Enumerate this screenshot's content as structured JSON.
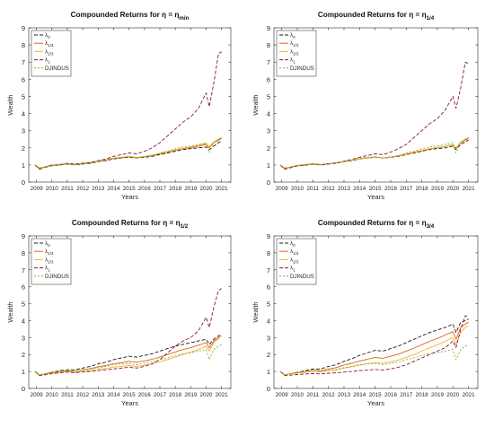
{
  "figure": {
    "legend_labels": [
      "λ0",
      "λ1/3",
      "λ2/3",
      "λ1",
      "DJINDUS"
    ],
    "legend_display": [
      {
        "main": "λ",
        "sub": "0"
      },
      {
        "main": "λ",
        "sub": "1/3"
      },
      {
        "main": "λ",
        "sub": "2/3"
      },
      {
        "main": "λ",
        "sub": "1"
      },
      {
        "main": "DJINDUS",
        "sub": ""
      }
    ],
    "series_colors": [
      "#1a1a1a",
      "#e0621d",
      "#f2b233",
      "#8b1a3e",
      "#7ab532"
    ]
  },
  "chart_data": [
    {
      "type": "line",
      "title": "Compounded Returns for η = η",
      "title_sub": "min",
      "xlabel": "Years",
      "ylabel": "Wealth",
      "xticks": [
        "2009",
        "2010",
        "2011",
        "2012",
        "2013",
        "2014",
        "2015",
        "2016",
        "2017",
        "2018",
        "2019",
        "2020",
        "2021"
      ],
      "xlim": [
        2008.5,
        2021.6
      ],
      "ylim": [
        0,
        9
      ],
      "yticks": [
        0,
        1,
        2,
        3,
        4,
        5,
        6,
        7,
        8,
        9
      ],
      "legend_position": "top-left",
      "x": [
        2008.9,
        2009.2,
        2009.5,
        2010,
        2010.5,
        2011,
        2011.5,
        2012,
        2012.5,
        2013,
        2013.5,
        2014,
        2014.5,
        2015,
        2015.5,
        2016,
        2016.5,
        2017,
        2017.5,
        2018,
        2018.5,
        2019,
        2019.5,
        2020,
        2020.2,
        2020.5,
        2020.8,
        2021
      ],
      "series": [
        {
          "name": "λ0",
          "values": [
            1.0,
            0.8,
            0.85,
            0.95,
            1.0,
            1.05,
            1.0,
            1.05,
            1.1,
            1.2,
            1.25,
            1.35,
            1.4,
            1.45,
            1.4,
            1.45,
            1.5,
            1.6,
            1.7,
            1.8,
            1.9,
            1.95,
            2.0,
            2.05,
            1.9,
            2.1,
            2.3,
            2.4
          ]
        },
        {
          "name": "λ1/3",
          "values": [
            1.0,
            0.82,
            0.87,
            0.97,
            1.02,
            1.07,
            1.02,
            1.08,
            1.13,
            1.22,
            1.28,
            1.38,
            1.42,
            1.48,
            1.43,
            1.48,
            1.55,
            1.65,
            1.75,
            1.85,
            1.95,
            2.0,
            2.1,
            2.2,
            2.0,
            2.3,
            2.45,
            2.55
          ]
        },
        {
          "name": "λ2/3",
          "values": [
            1.0,
            0.84,
            0.89,
            0.99,
            1.04,
            1.09,
            1.04,
            1.1,
            1.15,
            1.24,
            1.3,
            1.4,
            1.45,
            1.5,
            1.45,
            1.5,
            1.58,
            1.68,
            1.78,
            1.88,
            1.98,
            2.05,
            2.15,
            2.25,
            2.05,
            2.35,
            2.5,
            2.6
          ]
        },
        {
          "name": "λ1",
          "values": [
            1.0,
            0.75,
            0.85,
            1.0,
            1.0,
            1.1,
            1.05,
            1.1,
            1.15,
            1.25,
            1.35,
            1.5,
            1.6,
            1.7,
            1.65,
            1.8,
            2.0,
            2.3,
            2.7,
            3.1,
            3.5,
            3.8,
            4.3,
            5.2,
            4.4,
            5.8,
            7.5,
            7.6
          ]
        },
        {
          "name": "DJINDUS",
          "values": [
            1.0,
            0.78,
            0.86,
            0.98,
            1.0,
            1.08,
            1.0,
            1.08,
            1.12,
            1.22,
            1.3,
            1.4,
            1.45,
            1.48,
            1.4,
            1.48,
            1.55,
            1.7,
            1.8,
            1.95,
            2.05,
            2.1,
            2.2,
            2.3,
            1.7,
            2.3,
            2.5,
            2.6
          ]
        }
      ]
    },
    {
      "type": "line",
      "title": "Compounded Returns for η = η",
      "title_sub": "1/4",
      "xlabel": "Years",
      "ylabel": "Wealth",
      "xticks": [
        "2009",
        "2010",
        "2011",
        "2012",
        "2013",
        "2014",
        "2015",
        "2016",
        "2017",
        "2018",
        "2019",
        "2020",
        "2021"
      ],
      "xlim": [
        2008.5,
        2021.6
      ],
      "ylim": [
        0,
        9
      ],
      "yticks": [
        0,
        1,
        2,
        3,
        4,
        5,
        6,
        7,
        8,
        9
      ],
      "legend_position": "top-left",
      "x": [
        2008.9,
        2009.2,
        2009.5,
        2010,
        2010.5,
        2011,
        2011.5,
        2012,
        2012.5,
        2013,
        2013.5,
        2014,
        2014.5,
        2015,
        2015.5,
        2016,
        2016.5,
        2017,
        2017.5,
        2018,
        2018.5,
        2019,
        2019.5,
        2020,
        2020.2,
        2020.5,
        2020.8,
        2021
      ],
      "series": [
        {
          "name": "λ0",
          "values": [
            1.0,
            0.8,
            0.85,
            0.95,
            1.0,
            1.05,
            1.0,
            1.05,
            1.1,
            1.2,
            1.25,
            1.35,
            1.4,
            1.45,
            1.4,
            1.45,
            1.5,
            1.6,
            1.7,
            1.8,
            1.9,
            1.95,
            2.0,
            2.1,
            1.9,
            2.2,
            2.35,
            2.45
          ]
        },
        {
          "name": "λ1/3",
          "values": [
            1.0,
            0.82,
            0.87,
            0.97,
            1.02,
            1.07,
            1.02,
            1.07,
            1.12,
            1.2,
            1.27,
            1.36,
            1.41,
            1.46,
            1.41,
            1.46,
            1.53,
            1.63,
            1.73,
            1.83,
            1.93,
            2.0,
            2.08,
            2.18,
            1.95,
            2.3,
            2.45,
            2.55
          ]
        },
        {
          "name": "λ2/3",
          "values": [
            1.0,
            0.83,
            0.88,
            0.98,
            1.03,
            1.08,
            1.03,
            1.08,
            1.13,
            1.22,
            1.28,
            1.37,
            1.42,
            1.47,
            1.42,
            1.47,
            1.55,
            1.65,
            1.75,
            1.85,
            1.95,
            2.02,
            2.1,
            2.2,
            2.0,
            2.35,
            2.5,
            2.6
          ]
        },
        {
          "name": "λ1",
          "values": [
            1.0,
            0.75,
            0.82,
            0.95,
            0.98,
            1.05,
            1.0,
            1.07,
            1.12,
            1.22,
            1.32,
            1.45,
            1.55,
            1.65,
            1.6,
            1.75,
            1.95,
            2.2,
            2.6,
            3.0,
            3.4,
            3.7,
            4.2,
            5.0,
            4.3,
            5.5,
            7.0,
            6.9
          ]
        },
        {
          "name": "DJINDUS",
          "values": [
            1.0,
            0.78,
            0.86,
            0.98,
            1.0,
            1.08,
            1.0,
            1.08,
            1.12,
            1.22,
            1.3,
            1.4,
            1.45,
            1.48,
            1.4,
            1.48,
            1.55,
            1.7,
            1.8,
            1.95,
            2.05,
            2.1,
            2.2,
            2.3,
            1.7,
            2.3,
            2.5,
            2.6
          ]
        }
      ]
    },
    {
      "type": "line",
      "title": "Compounded Returns for η = η",
      "title_sub": "1/2",
      "xlabel": "Years",
      "ylabel": "Wealth",
      "xticks": [
        "2009",
        "2010",
        "2011",
        "2012",
        "2013",
        "2014",
        "2015",
        "2016",
        "2017",
        "2018",
        "2019",
        "2020",
        "2021"
      ],
      "xlim": [
        2008.5,
        2021.6
      ],
      "ylim": [
        0,
        9
      ],
      "yticks": [
        0,
        1,
        2,
        3,
        4,
        5,
        6,
        7,
        8,
        9
      ],
      "legend_position": "top-left",
      "x": [
        2008.9,
        2009.2,
        2009.5,
        2010,
        2010.5,
        2011,
        2011.5,
        2012,
        2012.5,
        2013,
        2013.5,
        2014,
        2014.5,
        2015,
        2015.5,
        2016,
        2016.5,
        2017,
        2017.5,
        2018,
        2018.5,
        2019,
        2019.5,
        2020,
        2020.2,
        2020.5,
        2020.8,
        2021
      ],
      "series": [
        {
          "name": "λ0",
          "values": [
            1.0,
            0.8,
            0.85,
            0.95,
            1.05,
            1.1,
            1.1,
            1.2,
            1.3,
            1.45,
            1.55,
            1.7,
            1.8,
            1.9,
            1.85,
            1.95,
            2.05,
            2.2,
            2.35,
            2.5,
            2.6,
            2.7,
            2.8,
            2.9,
            2.6,
            2.9,
            3.1,
            3.2
          ]
        },
        {
          "name": "λ1/3",
          "values": [
            1.0,
            0.8,
            0.85,
            0.93,
            1.0,
            1.05,
            1.02,
            1.1,
            1.17,
            1.28,
            1.35,
            1.46,
            1.52,
            1.6,
            1.55,
            1.62,
            1.72,
            1.85,
            2.0,
            2.15,
            2.3,
            2.4,
            2.55,
            2.7,
            2.4,
            2.8,
            3.0,
            3.1
          ]
        },
        {
          "name": "λ2/3",
          "values": [
            1.0,
            0.8,
            0.84,
            0.9,
            0.95,
            1.0,
            0.95,
            1.0,
            1.05,
            1.12,
            1.18,
            1.26,
            1.3,
            1.35,
            1.3,
            1.37,
            1.45,
            1.58,
            1.7,
            1.85,
            2.0,
            2.15,
            2.3,
            2.5,
            2.2,
            2.7,
            2.95,
            3.1
          ]
        },
        {
          "name": "λ1",
          "values": [
            1.0,
            0.75,
            0.8,
            0.88,
            0.92,
            0.97,
            0.92,
            0.97,
            1.0,
            1.05,
            1.1,
            1.15,
            1.2,
            1.25,
            1.2,
            1.3,
            1.45,
            1.7,
            2.1,
            2.5,
            2.8,
            3.0,
            3.4,
            4.2,
            3.6,
            4.8,
            5.8,
            5.9
          ]
        },
        {
          "name": "DJINDUS",
          "values": [
            1.0,
            0.78,
            0.86,
            0.98,
            1.0,
            1.08,
            1.0,
            1.08,
            1.12,
            1.22,
            1.3,
            1.4,
            1.45,
            1.48,
            1.4,
            1.48,
            1.55,
            1.7,
            1.8,
            1.95,
            2.05,
            2.1,
            2.2,
            2.3,
            1.7,
            2.3,
            2.5,
            2.6
          ]
        }
      ]
    },
    {
      "type": "line",
      "title": "Compounded Returns for η = η",
      "title_sub": "3/4",
      "xlabel": "Years",
      "ylabel": "Wealth",
      "xticks": [
        "2009",
        "2010",
        "2011",
        "2012",
        "2013",
        "2014",
        "2015",
        "2016",
        "2017",
        "2018",
        "2019",
        "2020",
        "2021"
      ],
      "xlim": [
        2008.5,
        2021.6
      ],
      "ylim": [
        0,
        9
      ],
      "yticks": [
        0,
        1,
        2,
        3,
        4,
        5,
        6,
        7,
        8,
        9
      ],
      "legend_position": "top-left",
      "x": [
        2008.9,
        2009.2,
        2009.5,
        2010,
        2010.5,
        2011,
        2011.5,
        2012,
        2012.5,
        2013,
        2013.5,
        2014,
        2014.5,
        2015,
        2015.5,
        2016,
        2016.5,
        2017,
        2017.5,
        2018,
        2018.5,
        2019,
        2019.5,
        2020,
        2020.2,
        2020.5,
        2020.8,
        2021
      ],
      "series": [
        {
          "name": "λ0",
          "values": [
            1.0,
            0.8,
            0.85,
            0.95,
            1.05,
            1.15,
            1.15,
            1.3,
            1.4,
            1.6,
            1.75,
            1.95,
            2.1,
            2.25,
            2.2,
            2.35,
            2.5,
            2.7,
            2.9,
            3.1,
            3.3,
            3.45,
            3.6,
            3.8,
            3.3,
            3.9,
            4.0,
            4.1
          ]
        },
        {
          "name": "λ1/3",
          "values": [
            1.0,
            0.8,
            0.85,
            0.93,
            1.0,
            1.08,
            1.05,
            1.15,
            1.23,
            1.38,
            1.48,
            1.62,
            1.72,
            1.83,
            1.78,
            1.9,
            2.02,
            2.2,
            2.38,
            2.58,
            2.78,
            2.95,
            3.15,
            3.35,
            2.9,
            3.6,
            3.8,
            3.9
          ]
        },
        {
          "name": "λ2/3",
          "values": [
            1.0,
            0.8,
            0.84,
            0.9,
            0.95,
            1.0,
            0.97,
            1.05,
            1.1,
            1.2,
            1.28,
            1.38,
            1.45,
            1.52,
            1.48,
            1.57,
            1.68,
            1.83,
            2.0,
            2.2,
            2.4,
            2.58,
            2.78,
            3.0,
            2.6,
            3.3,
            3.6,
            3.7
          ]
        },
        {
          "name": "λ1",
          "values": [
            1.0,
            0.75,
            0.78,
            0.82,
            0.85,
            0.88,
            0.85,
            0.9,
            0.92,
            0.97,
            1.0,
            1.05,
            1.08,
            1.12,
            1.08,
            1.15,
            1.25,
            1.4,
            1.6,
            1.8,
            2.0,
            2.2,
            2.4,
            2.8,
            2.4,
            3.5,
            4.3,
            4.2
          ]
        },
        {
          "name": "DJINDUS",
          "values": [
            1.0,
            0.78,
            0.86,
            0.98,
            1.0,
            1.08,
            1.0,
            1.08,
            1.12,
            1.22,
            1.3,
            1.4,
            1.45,
            1.48,
            1.4,
            1.48,
            1.55,
            1.7,
            1.8,
            1.95,
            2.05,
            2.1,
            2.2,
            2.3,
            1.7,
            2.3,
            2.5,
            2.6
          ]
        }
      ]
    }
  ]
}
